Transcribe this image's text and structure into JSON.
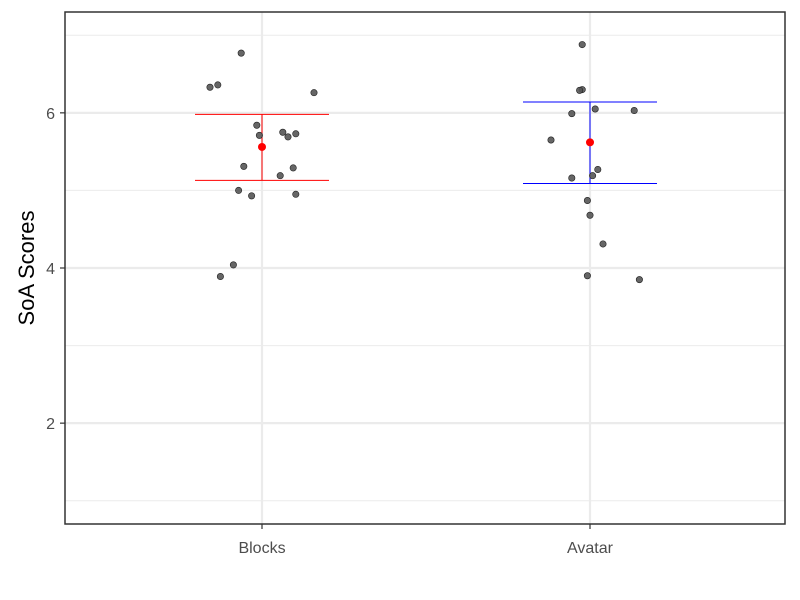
{
  "chart_data": {
    "type": "scatter",
    "title": "",
    "xlabel": "",
    "ylabel": "SoA Scores",
    "ylim": [
      0.7,
      7.3
    ],
    "y_ticks": [
      2,
      4,
      6
    ],
    "y_tick_labels": [
      "2",
      "4",
      "6"
    ],
    "grid": true,
    "legend": "none",
    "categories": [
      "Blocks",
      "Avatar"
    ],
    "colors": {
      "points": "#555555",
      "mean": "#ff0000",
      "Blocks_errorbar": "#ff0000",
      "Avatar_errorbar": "#0000ff",
      "grid_major": "#ebebeb",
      "panel_border": "#333333"
    },
    "series": [
      {
        "category": "Blocks",
        "points": [
          {
            "offset": -0.08,
            "y": 6.77
          },
          {
            "offset": -0.17,
            "y": 6.36
          },
          {
            "offset": -0.2,
            "y": 6.33
          },
          {
            "offset": 0.2,
            "y": 6.26
          },
          {
            "offset": -0.02,
            "y": 5.84
          },
          {
            "offset": 0.08,
            "y": 5.75
          },
          {
            "offset": 0.13,
            "y": 5.73
          },
          {
            "offset": -0.01,
            "y": 5.71
          },
          {
            "offset": 0.1,
            "y": 5.69
          },
          {
            "offset": -0.07,
            "y": 5.31
          },
          {
            "offset": 0.12,
            "y": 5.29
          },
          {
            "offset": 0.07,
            "y": 5.19
          },
          {
            "offset": -0.09,
            "y": 5.0
          },
          {
            "offset": 0.13,
            "y": 4.95
          },
          {
            "offset": -0.04,
            "y": 4.93
          },
          {
            "offset": -0.11,
            "y": 4.04
          },
          {
            "offset": -0.16,
            "y": 3.89
          }
        ],
        "mean": 5.56,
        "error_low": 5.13,
        "error_high": 5.98
      },
      {
        "category": "Avatar",
        "points": [
          {
            "offset": -0.03,
            "y": 6.88
          },
          {
            "offset": -0.03,
            "y": 6.3
          },
          {
            "offset": -0.04,
            "y": 6.29
          },
          {
            "offset": 0.02,
            "y": 6.05
          },
          {
            "offset": 0.17,
            "y": 6.03
          },
          {
            "offset": -0.07,
            "y": 5.99
          },
          {
            "offset": -0.15,
            "y": 5.65
          },
          {
            "offset": 0.03,
            "y": 5.27
          },
          {
            "offset": 0.01,
            "y": 5.19
          },
          {
            "offset": -0.07,
            "y": 5.16
          },
          {
            "offset": -0.01,
            "y": 4.87
          },
          {
            "offset": 0.0,
            "y": 4.68
          },
          {
            "offset": 0.05,
            "y": 4.31
          },
          {
            "offset": -0.01,
            "y": 3.9
          },
          {
            "offset": 0.19,
            "y": 3.85
          }
        ],
        "mean": 5.62,
        "error_low": 5.09,
        "error_high": 6.14
      }
    ]
  }
}
